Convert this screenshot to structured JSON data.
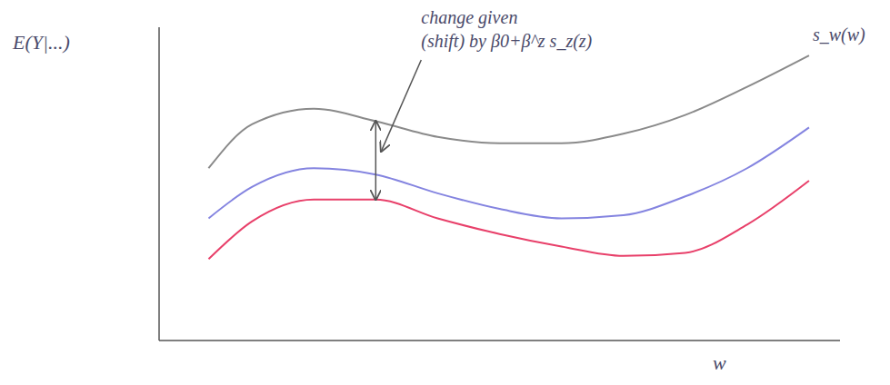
{
  "chart_data": {
    "type": "line",
    "x_label": "w",
    "y_label": "E(Y|...)",
    "annotations": [
      "change given",
      "(shift) by β0+β^z s_z(z)"
    ],
    "x": [
      0.8,
      1.5,
      2.5,
      3.5,
      4.5,
      5.5,
      6.5,
      7.5,
      8.5,
      9.5,
      10.5
    ],
    "series": [
      {
        "name": "s_w(w)",
        "color": "#8a8a8a",
        "values": [
          5.5,
          6.9,
          7.4,
          7.0,
          6.5,
          6.3,
          6.3,
          6.6,
          7.2,
          8.1,
          9.1
        ]
      },
      {
        "color": "#8484e0",
        "values": [
          3.9,
          4.9,
          5.5,
          5.3,
          4.7,
          4.2,
          3.9,
          4.0,
          4.6,
          5.5,
          6.8
        ]
      },
      {
        "color": "#e8406a",
        "values": [
          2.6,
          3.8,
          4.5,
          4.5,
          3.9,
          3.4,
          3.0,
          2.7,
          2.8,
          3.7,
          5.1
        ]
      }
    ],
    "xlim": [
      0,
      11
    ],
    "ylim": [
      0,
      10
    ],
    "tick_labels": false
  }
}
